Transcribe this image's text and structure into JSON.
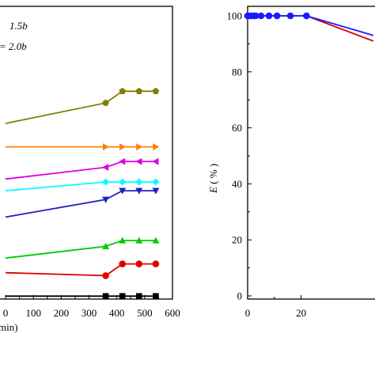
{
  "charts": [
    {
      "chart_data": {
        "type": "line",
        "xlabel_visible": "min)",
        "x_ticks": [
          "0",
          "100",
          "200",
          "300",
          "400",
          "500",
          "600"
        ],
        "xlim": [
          0,
          600
        ],
        "ylim": [
          0,
          100
        ],
        "legend_entries": [
          "1.5b",
          "= 2.0b"
        ],
        "series": [
          {
            "color": "#808000",
            "marker": "pentagon",
            "x": [
              0,
              360,
              420,
              480,
              540
            ],
            "y": [
              60,
              67,
              71,
              71,
              71
            ]
          },
          {
            "color": "#ff8000",
            "marker": "triangle-right",
            "x": [
              0,
              360,
              420,
              480,
              540
            ],
            "y": [
              52,
              52,
              52,
              52,
              52
            ]
          },
          {
            "color": "#e000e0",
            "marker": "triangle-left",
            "x": [
              0,
              360,
              420,
              480,
              540
            ],
            "y": [
              41,
              45,
              47,
              47,
              47
            ]
          },
          {
            "color": "#00ffff",
            "marker": "diamond",
            "x": [
              0,
              360,
              420,
              480,
              540
            ],
            "y": [
              37,
              40,
              40,
              40,
              40
            ]
          },
          {
            "color": "#2020c0",
            "marker": "triangle-down",
            "x": [
              0,
              360,
              420,
              480,
              540
            ],
            "y": [
              28,
              34,
              37,
              37,
              37
            ]
          },
          {
            "color": "#00cc00",
            "marker": "triangle-up",
            "x": [
              0,
              360,
              420,
              480,
              540
            ],
            "y": [
              14,
              18,
              20,
              20,
              20
            ]
          },
          {
            "color": "#e00000",
            "marker": "circle",
            "x": [
              0,
              360,
              420,
              480,
              540
            ],
            "y": [
              9,
              8,
              12,
              12,
              12
            ]
          },
          {
            "color": "#000000",
            "marker": "square",
            "x": [
              0,
              360,
              420,
              480,
              540
            ],
            "y": [
              1,
              1,
              1,
              1,
              1
            ]
          }
        ]
      }
    },
    {
      "chart_data": {
        "type": "line",
        "ylabel_italic": "E",
        "ylabel_rest": " ( % )",
        "y_ticks": [
          "0",
          "20",
          "40",
          "60",
          "80",
          "100"
        ],
        "x_ticks": [
          "0",
          "20"
        ],
        "ylim": [
          0,
          100
        ],
        "xlim": [
          0,
          50
        ],
        "series": [
          {
            "color": "#e00000",
            "x": [
              0,
              1,
              2,
              3,
              5,
              8,
              11,
              16,
              22,
              47
            ],
            "y": [
              100,
              100,
              100,
              100,
              100,
              100,
              100,
              100,
              100,
              91
            ],
            "markers": false
          },
          {
            "color": "#1a1aff",
            "x": [
              0,
              1,
              2,
              3,
              5,
              8,
              11,
              16,
              22,
              47
            ],
            "y": [
              100,
              100,
              100,
              100,
              100,
              100,
              100,
              100,
              100,
              93
            ],
            "markers": true
          }
        ]
      }
    }
  ]
}
